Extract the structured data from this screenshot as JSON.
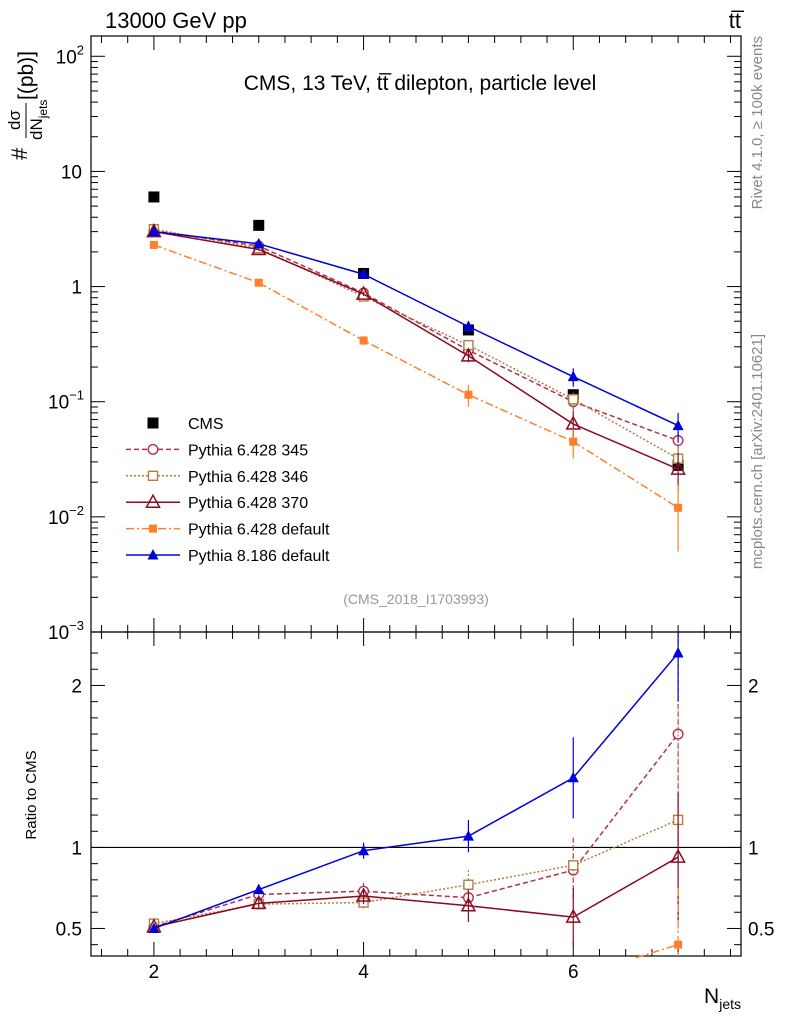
{
  "header": {
    "left": "13000 GeV pp",
    "right": "tt̅"
  },
  "side_labels": {
    "rivet": "Rivet 4.1.0, ≥ 100k events",
    "mcplots": "mcplots.cern.ch [arXiv:2401.10621]"
  },
  "chart_data": [
    {
      "type": "line",
      "title": "CMS, 13 TeV, tt̅ dilepton, particle level",
      "watermark": "(CMS_2018_I1703993)",
      "ylabel": {
        "prefix": "#",
        "num": "dσ",
        "den_main": "dN",
        "den_sub": "jets",
        "unit": "[(pb)]"
      },
      "yscale": "log",
      "ylim": [
        0.001,
        150
      ],
      "xlim": [
        1.4,
        7.6
      ],
      "y_tick_labels": [
        {
          "value": 100,
          "mant": "10",
          "exp": "2"
        },
        {
          "value": 10,
          "mant": "10",
          "exp": ""
        },
        {
          "value": 1,
          "mant": "1",
          "exp": ""
        },
        {
          "value": 0.1,
          "mant": "10",
          "exp": "−1"
        },
        {
          "value": 0.01,
          "mant": "10",
          "exp": "−2"
        },
        {
          "value": 0.001,
          "mant": "10",
          "exp": "−3"
        }
      ],
      "legend_position": "lower-left",
      "series": [
        {
          "name": "CMS",
          "color": "#000000",
          "marker": "square-filled",
          "dash": "",
          "line": false,
          "x": [
            2,
            3,
            4,
            5,
            6,
            7
          ],
          "y": [
            6.0,
            3.4,
            1.3,
            0.42,
            0.115,
            0.028
          ],
          "err": [
            0,
            0,
            0,
            0,
            0,
            0
          ]
        },
        {
          "name": "Pythia 6.428 345",
          "color": "#b03050",
          "marker": "circle-open",
          "dash": "5,3",
          "line": true,
          "x": [
            2,
            3,
            4,
            5,
            6,
            7
          ],
          "y": [
            3.05,
            2.25,
            0.88,
            0.28,
            0.1,
            0.046
          ],
          "err": [
            0.05,
            0.05,
            0.03,
            0.02,
            0.015,
            0.008
          ]
        },
        {
          "name": "Pythia 6.428 346",
          "color": "#b08040",
          "marker": "square-open",
          "dash": "2,2",
          "line": true,
          "x": [
            2,
            3,
            4,
            5,
            6,
            7
          ],
          "y": [
            3.15,
            2.15,
            0.82,
            0.31,
            0.105,
            0.032
          ],
          "err": [
            0.05,
            0.05,
            0.03,
            0.02,
            0.015,
            0.008
          ]
        },
        {
          "name": "Pythia 6.428 370",
          "color": "#8b0a20",
          "marker": "triangle-open",
          "dash": "",
          "line": true,
          "x": [
            2,
            3,
            4,
            5,
            6,
            7
          ],
          "y": [
            3.0,
            2.1,
            0.86,
            0.25,
            0.064,
            0.026
          ],
          "err": [
            0.05,
            0.05,
            0.03,
            0.03,
            0.02,
            0.01
          ]
        },
        {
          "name": "Pythia 6.428 default",
          "color": "#ff7f2a",
          "marker": "square-filled-small",
          "dash": "8,3,2,3",
          "line": true,
          "x": [
            2,
            3,
            4,
            5,
            6,
            7
          ],
          "y": [
            2.3,
            1.08,
            0.34,
            0.115,
            0.045,
            0.012
          ],
          "err": [
            0.04,
            0.03,
            0.03,
            0.025,
            0.013,
            0.007
          ]
        },
        {
          "name": "Pythia 8.186 default",
          "color": "#0000dd",
          "marker": "triangle-filled",
          "dash": "",
          "line": true,
          "x": [
            2,
            3,
            4,
            5,
            6,
            7
          ],
          "y": [
            3.0,
            2.35,
            1.28,
            0.45,
            0.165,
            0.062
          ],
          "err": [
            0.05,
            0.05,
            0.06,
            0.05,
            0.03,
            0.018
          ]
        }
      ]
    },
    {
      "type": "line",
      "ylabel": "Ratio to CMS",
      "xlabel": {
        "main": "N",
        "sub": "jets"
      },
      "ylim": [
        0.33,
        2.33
      ],
      "xlim": [
        1.4,
        7.6
      ],
      "x_tick_labels": [
        "2",
        "4",
        "6"
      ],
      "x_tick_values": [
        2,
        4,
        6
      ],
      "y_tick_labels": [
        "0.5",
        "1",
        "2"
      ],
      "y_tick_values": [
        0.5,
        1,
        2
      ],
      "reference_line": 1,
      "series": [
        {
          "name": "Pythia 6.428 345",
          "x": [
            2,
            3,
            4,
            5,
            6,
            7
          ],
          "y": [
            0.51,
            0.71,
            0.73,
            0.69,
            0.86,
            1.7
          ],
          "err": [
            0.02,
            0.03,
            0.05,
            0.06,
            0.2,
            0.8
          ]
        },
        {
          "name": "Pythia 6.428 346",
          "x": [
            2,
            3,
            4,
            5,
            6,
            7
          ],
          "y": [
            0.53,
            0.65,
            0.66,
            0.77,
            0.89,
            1.17
          ],
          "err": [
            0.02,
            0.03,
            0.05,
            0.09,
            0.15,
            0.7
          ]
        },
        {
          "name": "Pythia 6.428 370",
          "x": [
            2,
            3,
            4,
            5,
            6,
            7
          ],
          "y": [
            0.51,
            0.655,
            0.7,
            0.64,
            0.57,
            0.94
          ],
          "err": [
            0.02,
            0.03,
            0.05,
            0.1,
            0.18,
            0.4
          ]
        },
        {
          "name": "Pythia 6.428 default",
          "x": [
            7
          ],
          "y": [
            0.4
          ],
          "err": [
            0.35
          ]
        },
        {
          "name": "Pythia 8.186 default",
          "x": [
            2,
            3,
            4,
            5,
            6,
            7
          ],
          "y": [
            0.5,
            0.74,
            0.98,
            1.07,
            1.43,
            2.2
          ],
          "err": [
            0.02,
            0.03,
            0.05,
            0.1,
            0.25,
            0.3
          ]
        }
      ]
    }
  ]
}
